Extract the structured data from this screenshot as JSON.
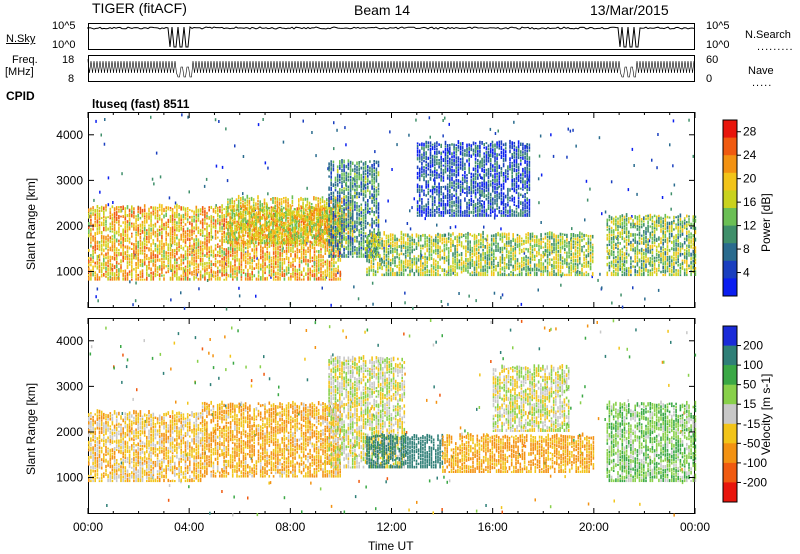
{
  "header": {
    "left": "TIGER (fitACF)",
    "center": "Beam 14",
    "right": "13/Mar/2015"
  },
  "status_rows": {
    "nsky": {
      "label": "N.Sky",
      "tick_top": "10^5",
      "tick_bottom": "10^0"
    },
    "nsearch": {
      "label": "N.Search",
      "tick_top": "10^5",
      "tick_bottom": "10^0"
    },
    "freq": {
      "label_line1": "Freq.",
      "label_line2": "[MHz]",
      "tick_top": "18",
      "tick_bottom": "8"
    },
    "nave": {
      "label": "Nave",
      "tick_top": "60",
      "tick_bottom": "0"
    },
    "cpid": {
      "label": "CPID",
      "value": "ltuseq (fast) 8511"
    }
  },
  "x_axis": {
    "label": "Time UT",
    "ticks": [
      "00:00",
      "04:00",
      "08:00",
      "12:00",
      "16:00",
      "20:00",
      "00:00"
    ]
  },
  "chart_data": [
    {
      "type": "heatmap",
      "panel": "power",
      "xlabel": "Time UT",
      "ylabel": "Slant Range [km]",
      "x_range": [
        0,
        24
      ],
      "ylim": [
        200,
        4500
      ],
      "y_ticks": [
        1000,
        2000,
        3000,
        4000
      ],
      "x_ticks": [
        "00:00",
        "04:00",
        "08:00",
        "12:00",
        "16:00",
        "20:00",
        "00:00"
      ],
      "colorbar": {
        "label": "Power [dB]",
        "ticks": [
          4,
          8,
          12,
          16,
          20,
          24,
          28
        ],
        "range": [
          0,
          30
        ],
        "colors": [
          "#0b1ef0",
          "#1a3fbf",
          "#2a6b8e",
          "#3f8f6a",
          "#6bbf55",
          "#c9d21e",
          "#f2c419",
          "#f39212",
          "#f05a10",
          "#e8150c"
        ]
      },
      "regions": [
        {
          "t_start": 0.0,
          "t_end": 10.0,
          "r_low": 800,
          "r_high": 2400,
          "value": 20
        },
        {
          "t_start": 5.5,
          "t_end": 10.5,
          "r_low": 1600,
          "r_high": 2600,
          "value": 18
        },
        {
          "t_start": 9.5,
          "t_end": 11.5,
          "r_low": 1300,
          "r_high": 3400,
          "value": 10
        },
        {
          "t_start": 11.0,
          "t_end": 20.0,
          "r_low": 900,
          "r_high": 1800,
          "value": 15
        },
        {
          "t_start": 13.0,
          "t_end": 17.5,
          "r_low": 2200,
          "r_high": 3800,
          "value": 6
        },
        {
          "t_start": 20.5,
          "t_end": 24.0,
          "r_low": 900,
          "r_high": 2200,
          "value": 14
        }
      ]
    },
    {
      "type": "heatmap",
      "panel": "velocity",
      "xlabel": "Time UT",
      "ylabel": "Slant Range [km]",
      "x_range": [
        0,
        24
      ],
      "ylim": [
        200,
        4500
      ],
      "y_ticks": [
        1000,
        2000,
        3000,
        4000
      ],
      "x_ticks": [
        "00:00",
        "04:00",
        "08:00",
        "12:00",
        "16:00",
        "20:00",
        "00:00"
      ],
      "colorbar": {
        "label": "Velocity [m s-1]",
        "ticks": [
          200,
          100,
          50,
          15,
          -15,
          -50,
          -100,
          -200
        ],
        "colors": [
          "#1a2bd8",
          "#2f7f77",
          "#3aa845",
          "#88d04a",
          "#c8c8c8",
          "#f2c419",
          "#f39212",
          "#f05a10",
          "#e8150c"
        ]
      },
      "regions": [
        {
          "t_start": 0.0,
          "t_end": 4.5,
          "r_low": 900,
          "r_high": 2400,
          "value": -30
        },
        {
          "t_start": 4.5,
          "t_end": 10.0,
          "r_low": 1000,
          "r_high": 2600,
          "value": -50
        },
        {
          "t_start": 9.5,
          "t_end": 12.5,
          "r_low": 1200,
          "r_high": 3600,
          "value": 0
        },
        {
          "t_start": 11.0,
          "t_end": 14.0,
          "r_low": 1200,
          "r_high": 1900,
          "value": 150
        },
        {
          "t_start": 14.0,
          "t_end": 20.0,
          "r_low": 1100,
          "r_high": 1900,
          "value": -60
        },
        {
          "t_start": 16.0,
          "t_end": 19.0,
          "r_low": 2000,
          "r_high": 3400,
          "value": 0
        },
        {
          "t_start": 20.5,
          "t_end": 24.0,
          "r_low": 900,
          "r_high": 2600,
          "value": 40
        }
      ]
    }
  ]
}
